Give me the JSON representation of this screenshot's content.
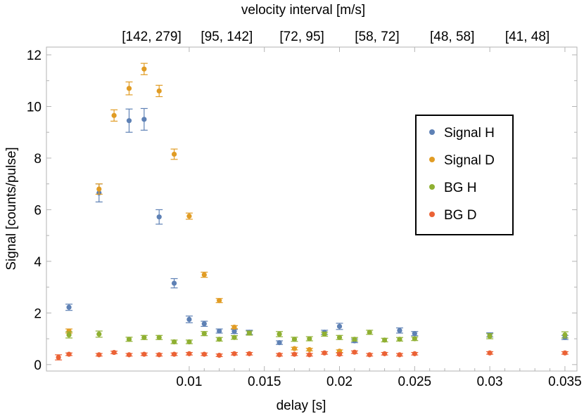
{
  "chart_data": {
    "type": "scatter",
    "xlabel": "delay [s]",
    "ylabel": "Signal [counts/pulse]",
    "top_axis_label": "velocity interval [m/s]",
    "top_ticks": [
      {
        "label": "[142, 279]",
        "x": 0.0075
      },
      {
        "label": "[95, 142]",
        "x": 0.0125
      },
      {
        "label": "[72, 95]",
        "x": 0.0175
      },
      {
        "label": "[58, 72]",
        "x": 0.0225
      },
      {
        "label": "[48, 58]",
        "x": 0.0275
      },
      {
        "label": "[41, 48]",
        "x": 0.0325
      }
    ],
    "xlim": [
      0.0005,
      0.0358
    ],
    "ylim": [
      -0.25,
      12.3
    ],
    "xticks": [
      {
        "v": 0.01,
        "label": "0.01"
      },
      {
        "v": 0.015,
        "label": "0.015"
      },
      {
        "v": 0.02,
        "label": "0.02"
      },
      {
        "v": 0.025,
        "label": "0.025"
      },
      {
        "v": 0.03,
        "label": "0.03"
      },
      {
        "v": 0.035,
        "label": "0.035"
      }
    ],
    "yticks": [
      {
        "v": 0,
        "label": "0"
      },
      {
        "v": 2,
        "label": "2"
      },
      {
        "v": 4,
        "label": "4"
      },
      {
        "v": 6,
        "label": "6"
      },
      {
        "v": 8,
        "label": "8"
      },
      {
        "v": 10,
        "label": "10"
      },
      {
        "v": 12,
        "label": "12"
      }
    ],
    "legend_position": "right",
    "series": [
      {
        "name": "Signal H",
        "color": "#5e81b5",
        "points": [
          {
            "x": 0.002,
            "y": 2.22,
            "e": 0.12
          },
          {
            "x": 0.004,
            "y": 6.65,
            "e": 0.35
          },
          {
            "x": 0.006,
            "y": 9.45,
            "e": 0.45
          },
          {
            "x": 0.007,
            "y": 9.5,
            "e": 0.42
          },
          {
            "x": 0.008,
            "y": 5.72,
            "e": 0.28
          },
          {
            "x": 0.009,
            "y": 3.15,
            "e": 0.18
          },
          {
            "x": 0.01,
            "y": 1.75,
            "e": 0.13
          },
          {
            "x": 0.011,
            "y": 1.58,
            "e": 0.1
          },
          {
            "x": 0.012,
            "y": 1.3,
            "e": 0.08
          },
          {
            "x": 0.013,
            "y": 1.28,
            "e": 0.08
          },
          {
            "x": 0.014,
            "y": 1.25,
            "e": 0.08
          },
          {
            "x": 0.016,
            "y": 0.85,
            "e": 0.07
          },
          {
            "x": 0.019,
            "y": 1.25,
            "e": 0.08
          },
          {
            "x": 0.02,
            "y": 1.48,
            "e": 0.12
          },
          {
            "x": 0.021,
            "y": 0.92,
            "e": 0.07
          },
          {
            "x": 0.024,
            "y": 1.32,
            "e": 0.1
          },
          {
            "x": 0.025,
            "y": 1.2,
            "e": 0.08
          },
          {
            "x": 0.03,
            "y": 1.15,
            "e": 0.08
          },
          {
            "x": 0.035,
            "y": 1.05,
            "e": 0.08
          }
        ]
      },
      {
        "name": "Signal D",
        "color": "#e19c24",
        "points": [
          {
            "x": 0.002,
            "y": 1.3,
            "e": 0.08
          },
          {
            "x": 0.004,
            "y": 6.8,
            "e": 0.2
          },
          {
            "x": 0.005,
            "y": 9.65,
            "e": 0.22
          },
          {
            "x": 0.006,
            "y": 10.7,
            "e": 0.25
          },
          {
            "x": 0.007,
            "y": 11.45,
            "e": 0.22
          },
          {
            "x": 0.008,
            "y": 10.6,
            "e": 0.22
          },
          {
            "x": 0.009,
            "y": 8.15,
            "e": 0.2
          },
          {
            "x": 0.01,
            "y": 5.75,
            "e": 0.12
          },
          {
            "x": 0.011,
            "y": 3.48,
            "e": 0.1
          },
          {
            "x": 0.012,
            "y": 2.48,
            "e": 0.08
          },
          {
            "x": 0.013,
            "y": 1.45,
            "e": 0.06
          },
          {
            "x": 0.017,
            "y": 0.62,
            "e": 0.05
          },
          {
            "x": 0.018,
            "y": 0.58,
            "e": 0.05
          },
          {
            "x": 0.02,
            "y": 0.52,
            "e": 0.05
          }
        ]
      },
      {
        "name": "BG H",
        "color": "#8fb032",
        "points": [
          {
            "x": 0.002,
            "y": 1.15,
            "e": 0.12
          },
          {
            "x": 0.004,
            "y": 1.18,
            "e": 0.12
          },
          {
            "x": 0.006,
            "y": 0.98,
            "e": 0.08
          },
          {
            "x": 0.007,
            "y": 1.05,
            "e": 0.08
          },
          {
            "x": 0.008,
            "y": 1.05,
            "e": 0.08
          },
          {
            "x": 0.009,
            "y": 0.88,
            "e": 0.07
          },
          {
            "x": 0.01,
            "y": 0.88,
            "e": 0.07
          },
          {
            "x": 0.011,
            "y": 1.2,
            "e": 0.08
          },
          {
            "x": 0.012,
            "y": 0.98,
            "e": 0.07
          },
          {
            "x": 0.013,
            "y": 1.05,
            "e": 0.07
          },
          {
            "x": 0.014,
            "y": 1.22,
            "e": 0.08
          },
          {
            "x": 0.016,
            "y": 1.18,
            "e": 0.1
          },
          {
            "x": 0.017,
            "y": 0.98,
            "e": 0.08
          },
          {
            "x": 0.018,
            "y": 1.0,
            "e": 0.08
          },
          {
            "x": 0.019,
            "y": 1.18,
            "e": 0.08
          },
          {
            "x": 0.02,
            "y": 1.05,
            "e": 0.08
          },
          {
            "x": 0.021,
            "y": 0.98,
            "e": 0.07
          },
          {
            "x": 0.022,
            "y": 1.25,
            "e": 0.08
          },
          {
            "x": 0.023,
            "y": 0.95,
            "e": 0.07
          },
          {
            "x": 0.024,
            "y": 0.98,
            "e": 0.07
          },
          {
            "x": 0.025,
            "y": 1.0,
            "e": 0.07
          },
          {
            "x": 0.03,
            "y": 1.1,
            "e": 0.1
          },
          {
            "x": 0.035,
            "y": 1.15,
            "e": 0.12
          }
        ]
      },
      {
        "name": "BG D",
        "color": "#eb6235",
        "points": [
          {
            "x": 0.0013,
            "y": 0.28,
            "e": 0.1
          },
          {
            "x": 0.002,
            "y": 0.4,
            "e": 0.05
          },
          {
            "x": 0.004,
            "y": 0.38,
            "e": 0.05
          },
          {
            "x": 0.005,
            "y": 0.47,
            "e": 0.05
          },
          {
            "x": 0.006,
            "y": 0.38,
            "e": 0.05
          },
          {
            "x": 0.007,
            "y": 0.4,
            "e": 0.05
          },
          {
            "x": 0.008,
            "y": 0.38,
            "e": 0.05
          },
          {
            "x": 0.009,
            "y": 0.4,
            "e": 0.05
          },
          {
            "x": 0.01,
            "y": 0.42,
            "e": 0.05
          },
          {
            "x": 0.011,
            "y": 0.4,
            "e": 0.05
          },
          {
            "x": 0.012,
            "y": 0.36,
            "e": 0.05
          },
          {
            "x": 0.013,
            "y": 0.42,
            "e": 0.05
          },
          {
            "x": 0.014,
            "y": 0.42,
            "e": 0.05
          },
          {
            "x": 0.016,
            "y": 0.38,
            "e": 0.05
          },
          {
            "x": 0.017,
            "y": 0.4,
            "e": 0.05
          },
          {
            "x": 0.018,
            "y": 0.38,
            "e": 0.05
          },
          {
            "x": 0.019,
            "y": 0.45,
            "e": 0.05
          },
          {
            "x": 0.02,
            "y": 0.4,
            "e": 0.05
          },
          {
            "x": 0.021,
            "y": 0.48,
            "e": 0.05
          },
          {
            "x": 0.022,
            "y": 0.38,
            "e": 0.05
          },
          {
            "x": 0.023,
            "y": 0.42,
            "e": 0.05
          },
          {
            "x": 0.024,
            "y": 0.38,
            "e": 0.05
          },
          {
            "x": 0.025,
            "y": 0.42,
            "e": 0.05
          },
          {
            "x": 0.03,
            "y": 0.45,
            "e": 0.05
          },
          {
            "x": 0.035,
            "y": 0.45,
            "e": 0.05
          }
        ]
      }
    ]
  }
}
